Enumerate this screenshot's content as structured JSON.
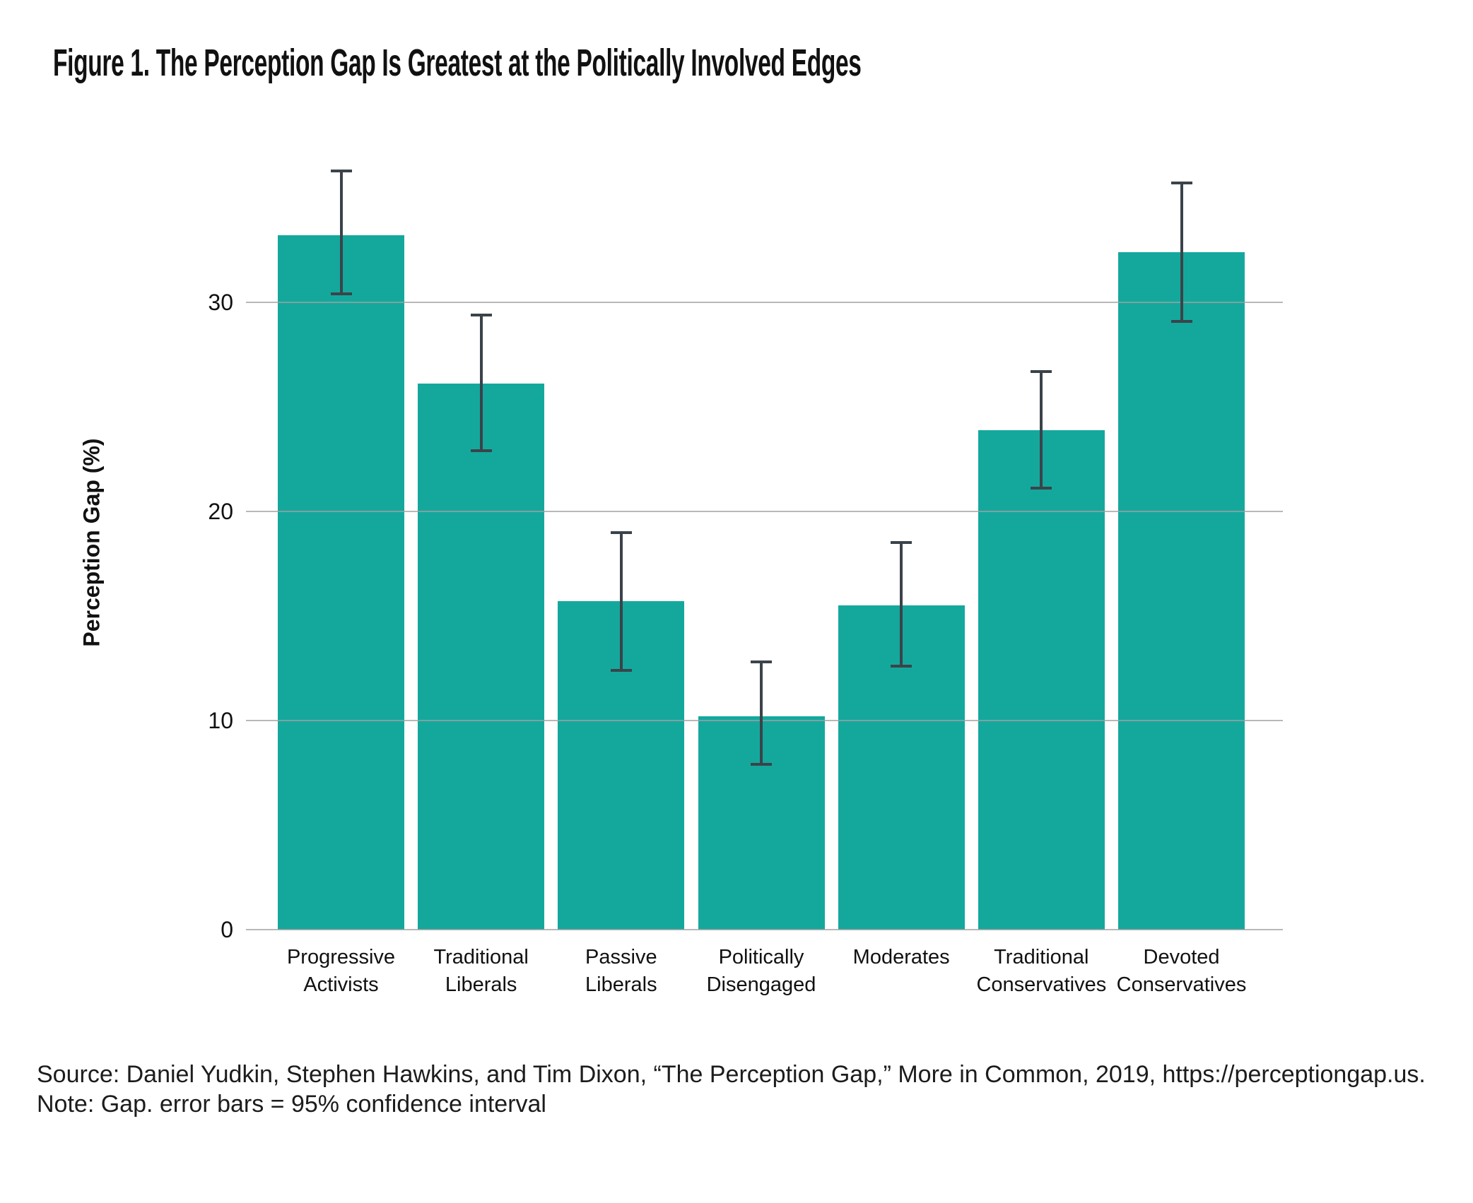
{
  "title": "Figure 1. The Perception Gap Is Greatest at the Politically Involved Edges",
  "source": "Source: Daniel Yudkin, Stephen Hawkins, and Tim Dixon, “The Perception Gap,” More in Common, 2019, https://perceptiongap.us.",
  "note": "Note: Gap. error bars = 95% confidence interval",
  "colors": {
    "bar": "#14a89d",
    "error_bar": "#3b434a",
    "gridline": "#a6a6a6",
    "text": "#111111"
  },
  "chart_data": {
    "type": "bar",
    "title": "Figure 1. The Perception Gap Is Greatest at the Politically Involved Edges",
    "xlabel": "",
    "ylabel": "Perception Gap (%)",
    "ylim": [
      0,
      37
    ],
    "yticks": [
      0,
      10,
      20,
      30
    ],
    "ytick_labels": [
      "0",
      "10",
      "20",
      "30"
    ],
    "grid": true,
    "legend": false,
    "error_bars": "95% confidence interval",
    "categories": [
      "Progressive Activists",
      "Traditional Liberals",
      "Passive Liberals",
      "Politically Disengaged",
      "Moderates",
      "Traditional Conservatives",
      "Devoted Conservatives"
    ],
    "category_label_lines": [
      [
        "Progressive",
        "Activists"
      ],
      [
        "Traditional",
        "Liberals"
      ],
      [
        "Passive",
        "Liberals"
      ],
      [
        "Politically",
        "Disengaged"
      ],
      [
        "Moderates"
      ],
      [
        "Traditional",
        "Conservatives"
      ],
      [
        "Devoted",
        "Conservatives"
      ]
    ],
    "values": [
      33.2,
      26.1,
      15.7,
      10.2,
      15.5,
      23.9,
      32.4
    ],
    "ci_low": [
      30.4,
      22.9,
      12.4,
      7.9,
      12.6,
      21.1,
      29.1
    ],
    "ci_high": [
      36.3,
      29.4,
      19.0,
      12.8,
      18.5,
      26.7,
      35.7
    ]
  }
}
